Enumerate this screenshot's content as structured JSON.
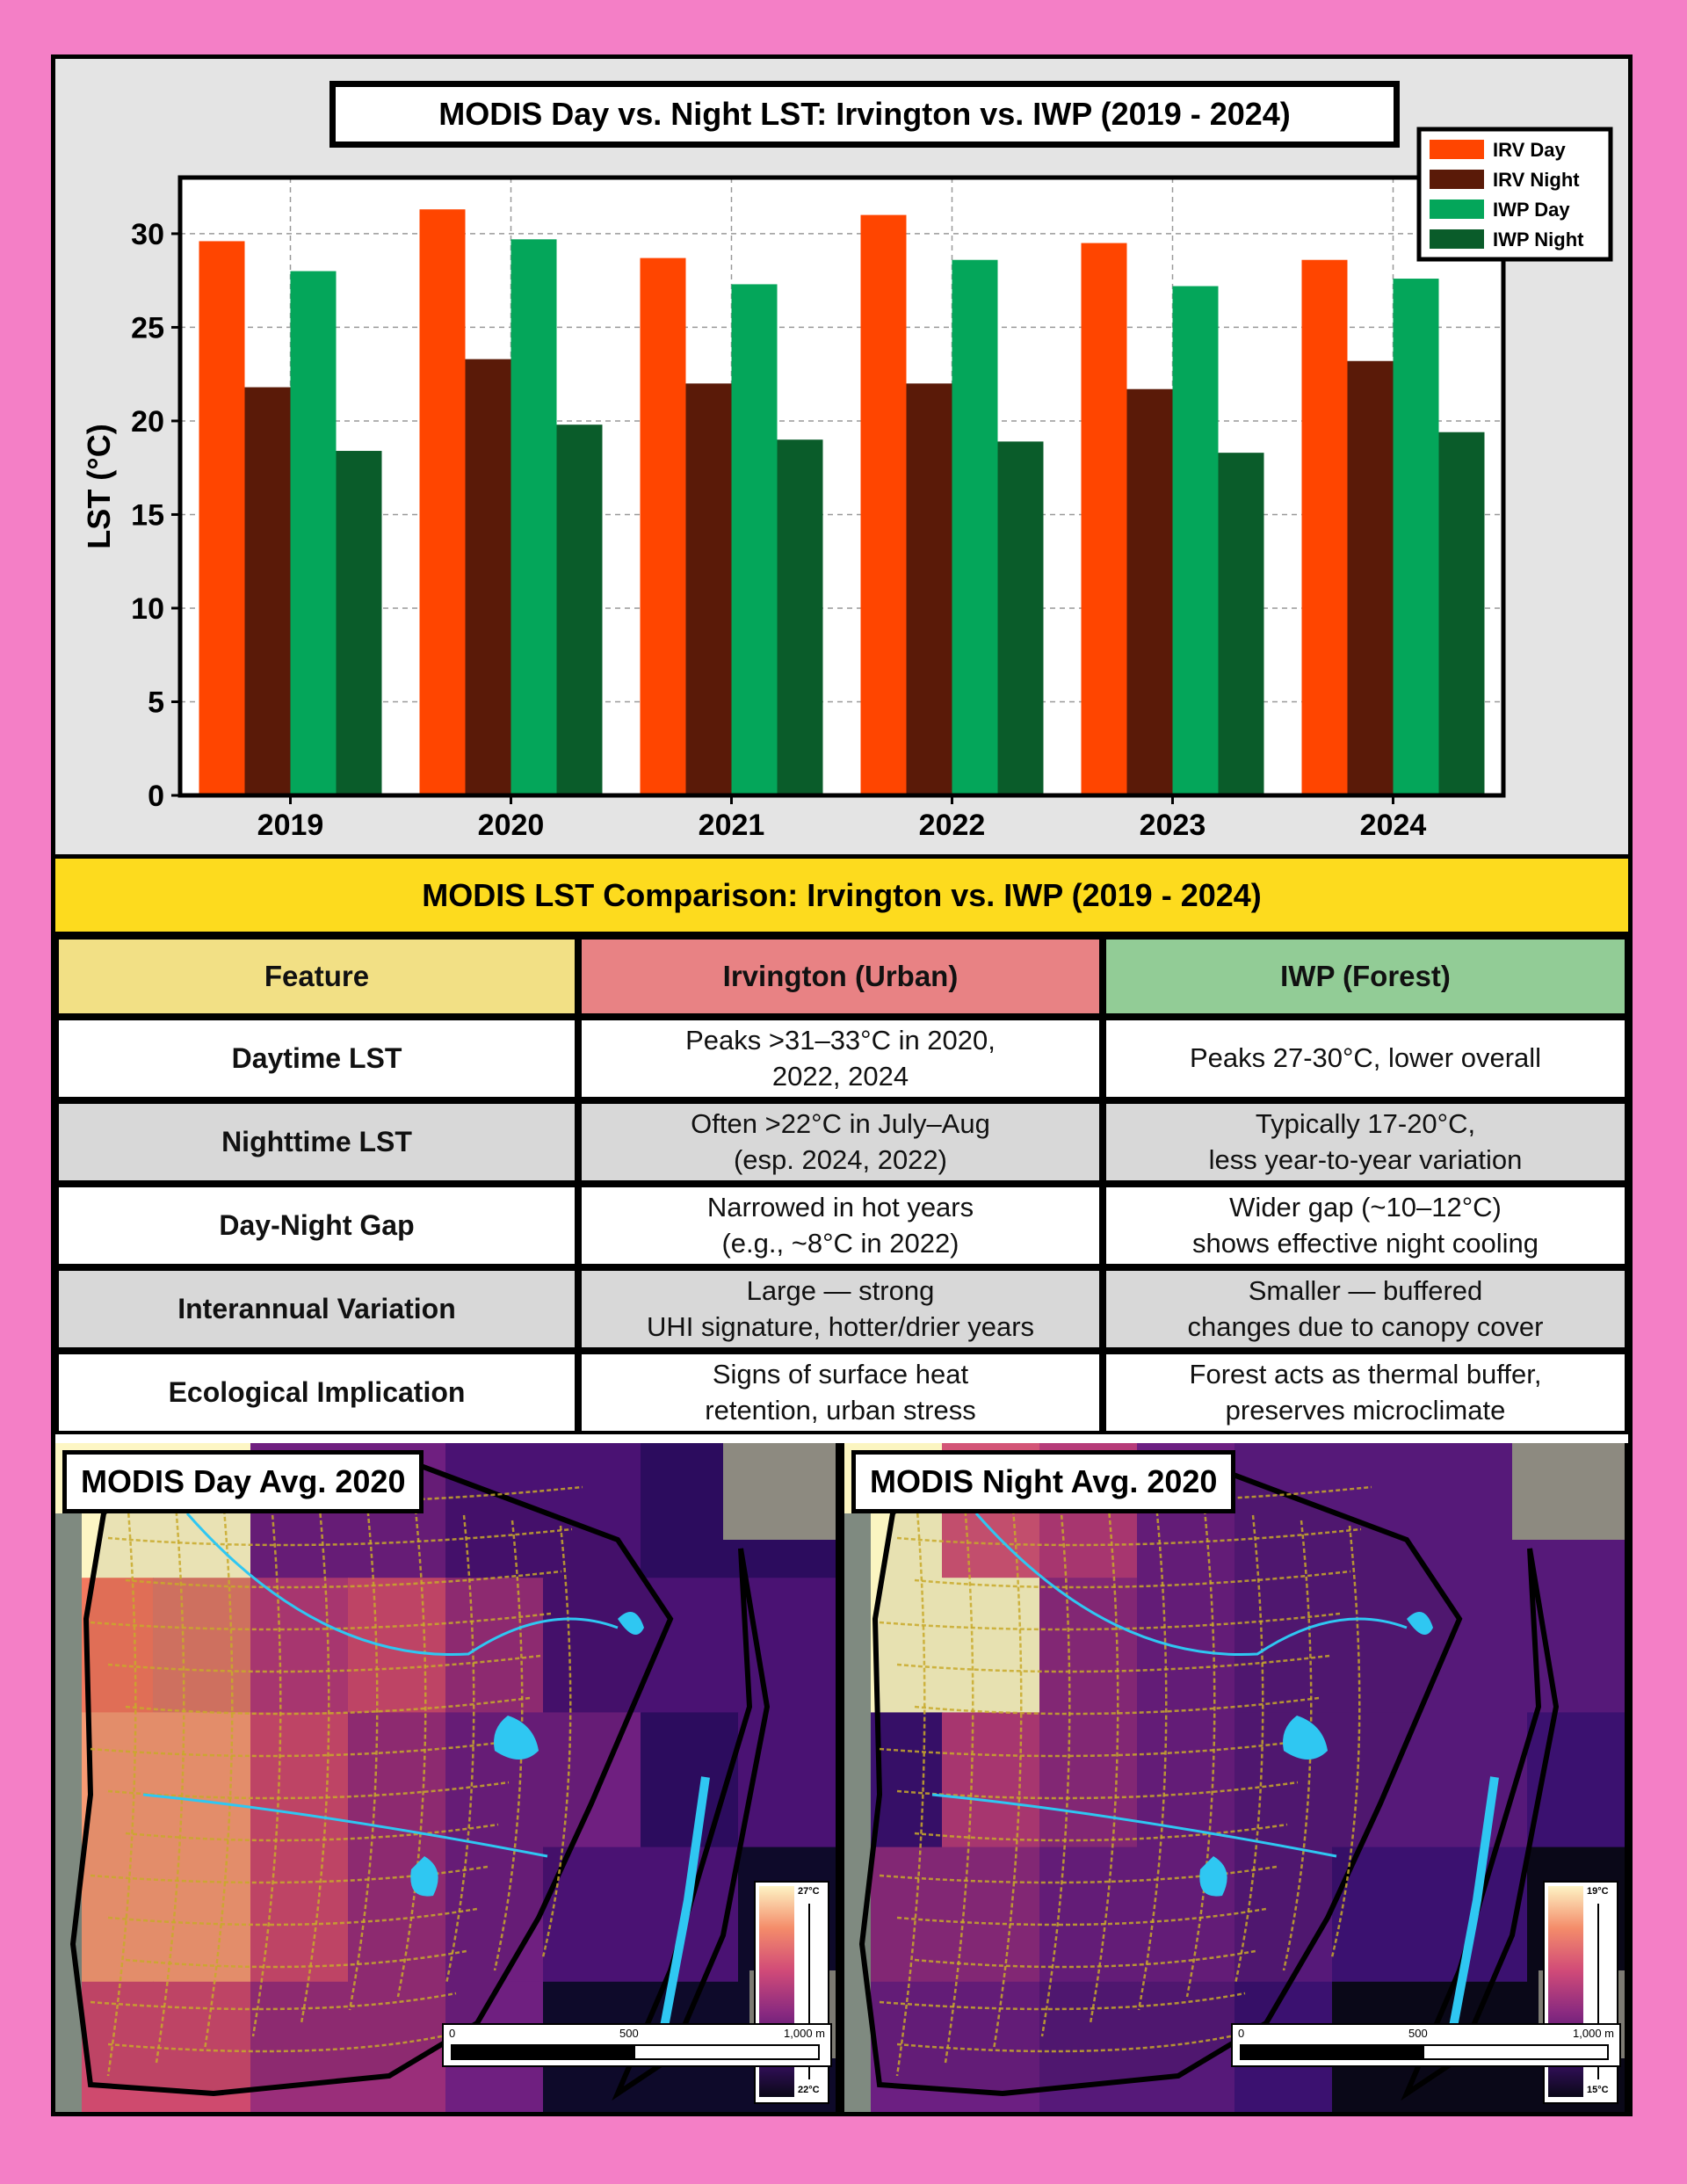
{
  "chart_data": {
    "type": "bar",
    "title": "MODIS Day vs. Night LST: Irvington vs. IWP (2019 - 2024)",
    "ylabel": "LST (°C)",
    "xlabel": "",
    "ylim": [
      0,
      33
    ],
    "yticks": [
      0,
      5,
      10,
      15,
      20,
      25,
      30
    ],
    "categories": [
      "2019",
      "2020",
      "2021",
      "2022",
      "2023",
      "2024"
    ],
    "grid": true,
    "legend_position": "top-right",
    "series": [
      {
        "name": "IRV Day",
        "color": "#ff4500",
        "values": [
          29.6,
          31.3,
          28.7,
          31.0,
          29.5,
          28.6
        ]
      },
      {
        "name": "IRV Night",
        "color": "#5a1a08",
        "values": [
          21.8,
          23.3,
          22.0,
          22.0,
          21.7,
          23.2
        ]
      },
      {
        "name": "IWP Day",
        "color": "#04a65a",
        "values": [
          28.0,
          29.7,
          27.3,
          28.6,
          27.2,
          27.6
        ]
      },
      {
        "name": "IWP Night",
        "color": "#0a5c2a",
        "values": [
          18.4,
          19.8,
          19.0,
          18.9,
          18.3,
          19.4
        ]
      }
    ]
  },
  "table": {
    "title": "MODIS LST Comparison: Irvington vs. IWP (2019 - 2024)",
    "headers": [
      "Feature",
      "Irvington (Urban)",
      "IWP (Forest)"
    ],
    "header_colors": [
      "#f2e085",
      "#e88284",
      "#92cc96"
    ],
    "rows": [
      [
        "Daytime LST",
        "Peaks >31–33°C in 2020,\n2022, 2024",
        "Peaks 27-30°C, lower overall"
      ],
      [
        "Nighttime LST",
        "Often >22°C in July–Aug\n(esp. 2024, 2022)",
        "Typically 17-20°C,\nless year-to-year variation"
      ],
      [
        "Day-Night Gap",
        "Narrowed in hot years\n(e.g., ~8°C in 2022)",
        "Wider gap (~10–12°C)\nshows effective night cooling"
      ],
      [
        "Interannual Variation",
        "Large — strong\nUHI signature, hotter/drier years",
        "Smaller — buffered\nchanges due to canopy cover"
      ],
      [
        "Ecological Implication",
        "Signs of surface heat\nretention, urban stress",
        "Forest acts as thermal buffer,\npreserves microclimate"
      ]
    ]
  },
  "maps": [
    {
      "label": "MODIS Day Avg. 2020",
      "legend_max": "27°C",
      "legend_min": "22°C",
      "scale": {
        "a": "0",
        "b": "500",
        "c": "1,000 m"
      }
    },
    {
      "label": "MODIS Night Avg. 2020",
      "legend_max": "19°C",
      "legend_min": "15°C",
      "scale": {
        "a": "0",
        "b": "500",
        "c": "1,000 m"
      }
    }
  ]
}
